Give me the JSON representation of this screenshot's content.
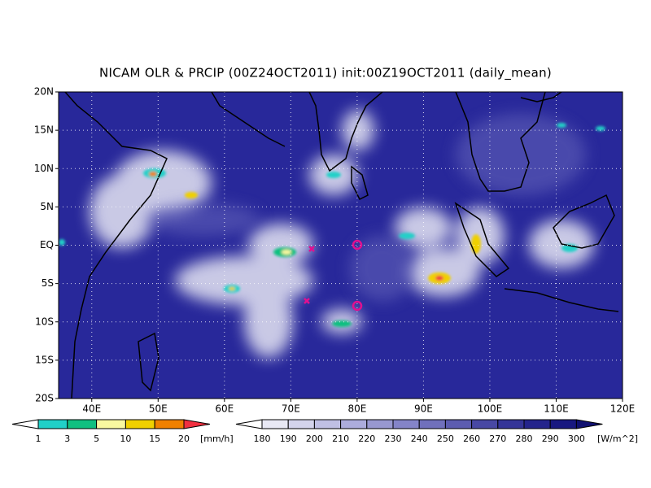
{
  "title": "NICAM OLR & PRCIP (00Z24OCT2011) init:00Z19OCT2011 (daily_mean)",
  "lat_labels": [
    "20N",
    "15N",
    "10N",
    "5N",
    "EQ",
    "5S",
    "10S",
    "15S",
    "20S"
  ],
  "lon_labels": [
    "40E",
    "50E",
    "60E",
    "70E",
    "80E",
    "90E",
    "100E",
    "110E",
    "120E"
  ],
  "precip_scale": {
    "labels": [
      "1",
      "3",
      "5",
      "10",
      "15",
      "20"
    ],
    "unit": "[mm/h]",
    "colors": [
      "#ffffff",
      "#20d0c8",
      "#10c080",
      "#f8f8a0",
      "#f0d000",
      "#f08000",
      "#f03040"
    ]
  },
  "olr_scale": {
    "labels": [
      "180",
      "190",
      "200",
      "210",
      "220",
      "230",
      "240",
      "250",
      "260",
      "270",
      "280",
      "290",
      "300"
    ],
    "unit": "[W/m^2]",
    "colors": [
      "#ffffff",
      "#e8e8f4",
      "#d4d4ec",
      "#c0c0e4",
      "#acacdc",
      "#9898d0",
      "#8484c8",
      "#7070bc",
      "#5c5cb0",
      "#4848a4",
      "#343498",
      "#24248c",
      "#181880",
      "#101070"
    ]
  }
}
